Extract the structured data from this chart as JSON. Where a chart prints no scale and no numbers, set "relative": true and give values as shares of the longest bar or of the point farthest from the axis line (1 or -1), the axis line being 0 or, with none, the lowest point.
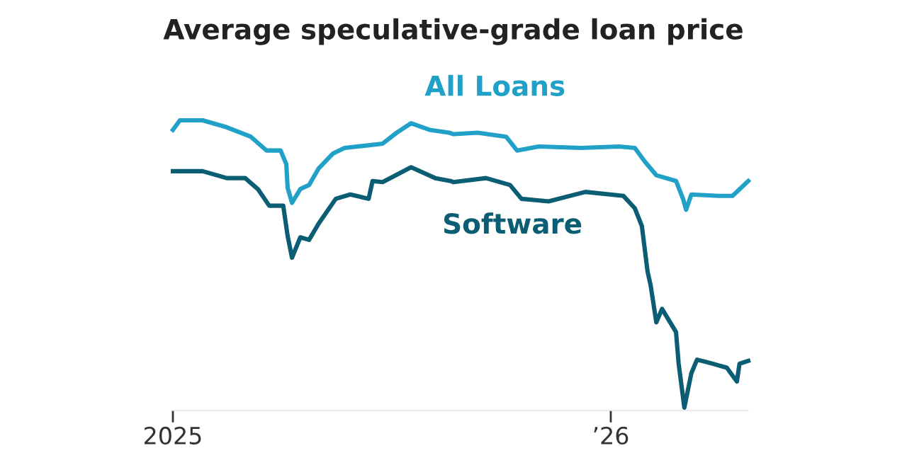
{
  "chart_data": {
    "type": "line",
    "title": "Average speculative-grade loan price",
    "relative": true,
    "legend": false,
    "grid": false,
    "xlim": [
      2025,
      2026.314
    ],
    "xticks": [
      {
        "value": 2025,
        "label": "2025"
      },
      {
        "value": 2026,
        "label": "’26"
      }
    ],
    "series": [
      {
        "name": "All Loans",
        "color": "#21a0c8",
        "x": [
          2025.0,
          2025.016,
          2025.068,
          2025.123,
          2025.178,
          2025.214,
          2025.246,
          2025.259,
          2025.262,
          2025.272,
          2025.291,
          2025.311,
          2025.333,
          2025.366,
          2025.392,
          2025.479,
          2025.511,
          2025.544,
          2025.586,
          2025.631,
          2025.641,
          2025.696,
          2025.761,
          2025.786,
          2025.835,
          2025.932,
          2026.019,
          2026.055,
          2026.078,
          2026.104,
          2026.149,
          2026.165,
          2026.172,
          2026.184,
          2026.246,
          2026.278,
          2026.314
        ],
        "values": [
          0.967,
          1.0,
          1.0,
          0.976,
          0.943,
          0.895,
          0.895,
          0.847,
          0.766,
          0.713,
          0.761,
          0.775,
          0.833,
          0.885,
          0.904,
          0.919,
          0.957,
          0.99,
          0.967,
          0.957,
          0.952,
          0.957,
          0.943,
          0.895,
          0.909,
          0.904,
          0.909,
          0.904,
          0.856,
          0.809,
          0.789,
          0.727,
          0.689,
          0.742,
          0.737,
          0.737,
          0.789
        ]
      },
      {
        "name": "Software",
        "color": "#0b5d74",
        "x": [
          2025.0,
          2025.068,
          2025.123,
          2025.165,
          2025.194,
          2025.22,
          2025.252,
          2025.262,
          2025.272,
          2025.291,
          2025.311,
          2025.333,
          2025.372,
          2025.405,
          2025.447,
          2025.456,
          2025.479,
          2025.544,
          2025.599,
          2025.634,
          2025.641,
          2025.715,
          2025.77,
          2025.796,
          2025.858,
          2025.942,
          2026.029,
          2026.055,
          2026.071,
          2026.084,
          2026.091,
          2026.104,
          2026.117,
          2026.149,
          2026.155,
          2026.168,
          2026.184,
          2026.197,
          2026.233,
          2026.265,
          2026.288,
          2026.294,
          2026.314
        ],
        "values": [
          0.823,
          0.823,
          0.799,
          0.799,
          0.761,
          0.703,
          0.703,
          0.598,
          0.522,
          0.593,
          0.584,
          0.641,
          0.727,
          0.742,
          0.727,
          0.789,
          0.785,
          0.837,
          0.799,
          0.789,
          0.785,
          0.799,
          0.775,
          0.727,
          0.718,
          0.751,
          0.737,
          0.694,
          0.632,
          0.474,
          0.426,
          0.297,
          0.344,
          0.263,
          0.153,
          0.0,
          0.12,
          0.167,
          0.153,
          0.139,
          0.091,
          0.153,
          0.163
        ]
      }
    ]
  }
}
